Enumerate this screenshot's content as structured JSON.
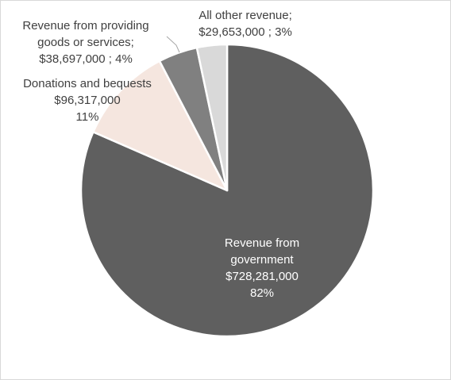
{
  "chart_data": {
    "type": "pie",
    "title": "",
    "start_angle_deg": 0,
    "direction": "clockwise",
    "slices": [
      {
        "name": "Revenue from government",
        "value": 728281000,
        "value_label": "$728,281,000",
        "percent_label": "82%",
        "color": "#5f5f5f",
        "label_lines": [
          "Revenue from",
          "government",
          "$728,281,000",
          "82%"
        ]
      },
      {
        "name": "Donations and bequests",
        "value": 96317000,
        "value_label": "$96,317,000",
        "percent_label": "11%",
        "color": "#f5e6df",
        "label_lines": [
          "Donations and bequests",
          "$96,317,000",
          "11%"
        ]
      },
      {
        "name": "Revenue from providing goods or services",
        "value": 38697000,
        "value_label": "$38,697,000",
        "percent_label": "4%",
        "color": "#808080",
        "label_lines": [
          "Revenue from providing",
          "goods or services;",
          "$38,697,000 ; 4%"
        ]
      },
      {
        "name": "All other revenue",
        "value": 29653000,
        "value_label": "$29,653,000",
        "percent_label": "3%",
        "color": "#d9d9d9",
        "label_lines": [
          "All other revenue;",
          "$29,653,000 ; 3%"
        ]
      }
    ]
  }
}
